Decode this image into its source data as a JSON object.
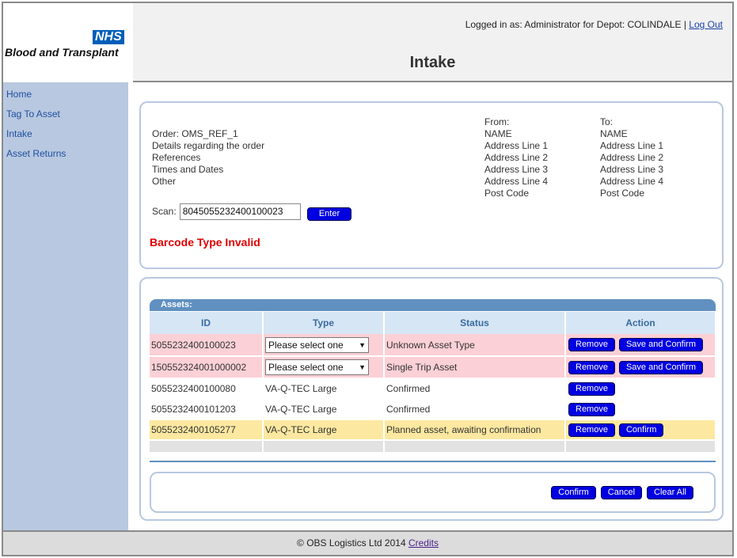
{
  "header": {
    "logo_badge": "NHS",
    "logo_text": "Blood and Transplant",
    "login_prefix": "Logged in as: Administrator for Depot: COLINDALE | ",
    "logout_label": "Log Out",
    "page_title": "Intake"
  },
  "sidebar": {
    "items": [
      {
        "label": "Home"
      },
      {
        "label": "Tag To Asset"
      },
      {
        "label": "Intake"
      },
      {
        "label": "Asset Returns"
      }
    ]
  },
  "order": {
    "lines": [
      "Order: OMS_REF_1",
      "Details regarding the order",
      "References",
      "Times and Dates",
      "Other"
    ],
    "from": [
      "From:",
      "NAME",
      "Address Line 1",
      "Address Line 2",
      "Address Line 3",
      "Address Line 4",
      "Post Code"
    ],
    "to": [
      "To:",
      "NAME",
      "Address Line 1",
      "Address Line 2",
      "Address Line 3",
      "Address Line 4",
      "Post Code"
    ],
    "scan_label": "Scan:",
    "scan_value": "8045055232400100023",
    "enter_label": "Enter",
    "error_message": "Barcode Type Invalid"
  },
  "assets": {
    "heading": "Assets:",
    "columns": [
      "ID",
      "Type",
      "Status",
      "Action"
    ],
    "select_placeholder": "Please select one",
    "rows": [
      {
        "id": "5055232400100023",
        "type": "",
        "status": "Unknown Asset Type",
        "action1": "Remove",
        "action2": "Save and Confirm"
      },
      {
        "id": "150552324001000002",
        "type": "",
        "status": "Single Trip Asset",
        "action1": "Remove",
        "action2": "Save and Confirm"
      },
      {
        "id": "5055232400100080",
        "type": "VA-Q-TEC Large",
        "status": "Confirmed",
        "action1": "Remove",
        "action2": ""
      },
      {
        "id": "5055232400101203",
        "type": "VA-Q-TEC Large",
        "status": "Confirmed",
        "action1": "Remove",
        "action2": ""
      },
      {
        "id": "5055232400105277",
        "type": "VA-Q-TEC Large",
        "status": "Planned asset, awaiting confirmation",
        "action1": "Remove",
        "action2": "Confirm"
      }
    ],
    "confirm_label": "Confirm",
    "cancel_label": "Cancel",
    "clear_label": "Clear All"
  },
  "footer": {
    "copyright": "© OBS Logistics Ltd 2014 ",
    "credits_label": "Credits"
  },
  "colors": {
    "sidebar": "#b8c8e0",
    "button": "#0000e0",
    "error": "#e00000",
    "row_error": "#fbd0d6",
    "row_pending": "#fce8a0",
    "nhs_blue": "#005eb8"
  }
}
